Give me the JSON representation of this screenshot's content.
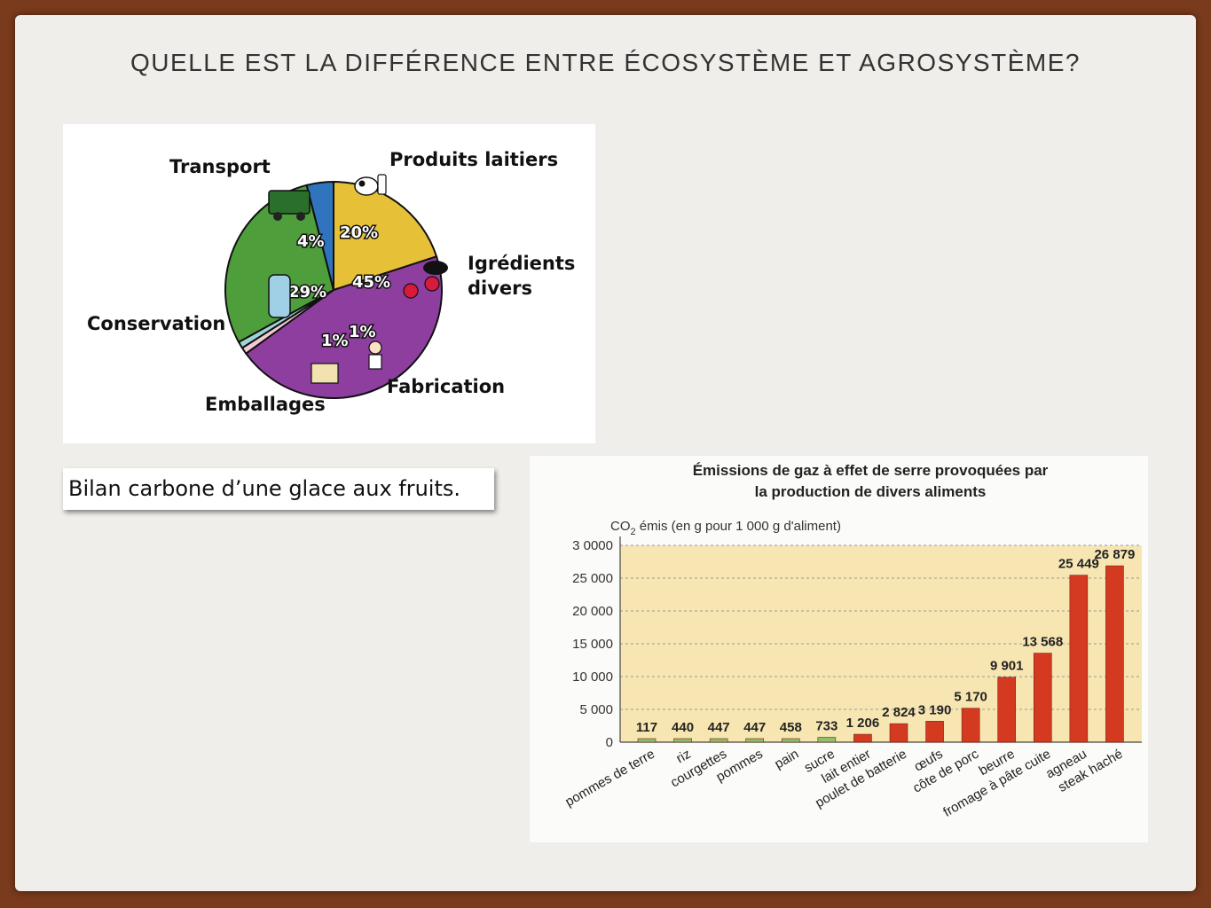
{
  "slide": {
    "title": "QUELLE EST LA DIFFÉRENCE ENTRE ÉCOSYSTÈME ET AGROSYSTÈME?",
    "caption": "Bilan carbone d’une glace aux fruits."
  },
  "pie_chart": {
    "labels": {
      "transport": "Transport",
      "produits": "Produits laitiers",
      "ingredients_1": "Igrédients",
      "ingredients_2": "divers",
      "conservation": "Conservation",
      "emballages": "Emballages",
      "fabrication": "Fabrication"
    },
    "percent_labels": {
      "transport": "4%",
      "produits": "20%",
      "ingredients": "45%",
      "fabrication": "1%",
      "emballages": "1%",
      "conservation": "29%"
    }
  },
  "chart_data": [
    {
      "type": "pie",
      "title": "",
      "slices": [
        {
          "label": "Produits laitiers",
          "value": 20,
          "color": "#e6c137"
        },
        {
          "label": "Igrédients divers",
          "value": 45,
          "color": "#8e3e9e"
        },
        {
          "label": "Fabrication",
          "value": 1,
          "color": "#f3c9d6"
        },
        {
          "label": "Emballages",
          "value": 1,
          "color": "#9fd3d6"
        },
        {
          "label": "Conservation",
          "value": 29,
          "color": "#4f9e3c"
        },
        {
          "label": "Transport",
          "value": 4,
          "color": "#2f74bd"
        }
      ]
    },
    {
      "type": "bar",
      "title": "Émissions de gaz à effet de serre provoquées par",
      "subtitle": "la production de divers aliments",
      "ylabel_prefix": "CO",
      "ylabel_sub": "2",
      "ylabel_rest": " émis (en g pour 1 000 g d'aliment)",
      "ylim": [
        0,
        30000
      ],
      "yticks": [
        0,
        5000,
        10000,
        15000,
        20000,
        25000,
        30000
      ],
      "ytick_labels": [
        "0",
        "5 000",
        "10 000",
        "15 000",
        "20 000",
        "25 000",
        "3 0000"
      ],
      "categories": [
        "pommes de terre",
        "riz",
        "courgettes",
        "pommes",
        "pain",
        "sucre",
        "lait entier",
        "poulet de batterie",
        "œufs",
        "côte de porc",
        "beurre",
        "fromage à pâte cuite",
        "agneau",
        "steak haché"
      ],
      "values": [
        117,
        440,
        447,
        447,
        458,
        733,
        1206,
        2824,
        3190,
        5170,
        9901,
        13568,
        25449,
        26879
      ],
      "value_labels": [
        "117",
        "440",
        "447",
        "447",
        "458",
        "733",
        "1 206",
        "2 824",
        "3 190",
        "5 170",
        "9 901",
        "13 568",
        "25 449",
        "26 879"
      ],
      "colors": {
        "low": "#8cc16a",
        "high": "#d33a20",
        "background": "#f7e6b2"
      }
    }
  ]
}
